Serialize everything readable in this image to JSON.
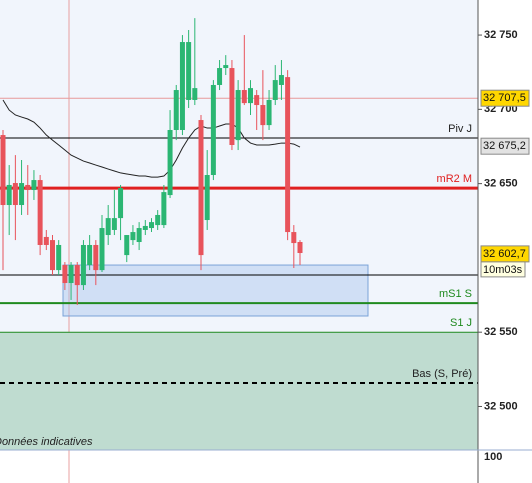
{
  "chart_data": {
    "type": "candlestick",
    "ylim": [
      32470.7,
      32773.6
    ],
    "yticks": [
      {
        "value": 32500,
        "label": "32 500"
      },
      {
        "value": 32550,
        "label": "32 550"
      },
      {
        "value": 32650,
        "label": "32 650"
      },
      {
        "value": 32700,
        "label": "32 700"
      },
      {
        "value": 32750,
        "label": "32 750"
      }
    ],
    "lower_panel_ticks": [
      100
    ],
    "up_color": "#2bb673",
    "down_color": "#e8535b",
    "categories": [
      null,
      null,
      null,
      null,
      null,
      null,
      null,
      null,
      null,
      null,
      null,
      null,
      null,
      null,
      null,
      null,
      null,
      null,
      null,
      null,
      null,
      null,
      null,
      null,
      null,
      null,
      null,
      null,
      null,
      null,
      null,
      null,
      null,
      null,
      null,
      null,
      null,
      null,
      null,
      null,
      null,
      null,
      null,
      null,
      null,
      null,
      null,
      null,
      null
    ],
    "open": [
      32682.7,
      32635.6,
      32650.4,
      32635.6,
      32649.1,
      32645.7,
      32652.4,
      32614.1,
      32612,
      32591.8,
      32595.2,
      32583.1,
      32595.2,
      32581.7,
      32595.2,
      32608.7,
      32591.8,
      32615.4,
      32618.8,
      32626.8,
      32601.9,
      32612,
      32610.7,
      32618.8,
      32620.1,
      32622.1,
      32622.1,
      32642.3,
      32686.1,
      32686.1,
      32706.3,
      32706.3,
      32692.8,
      32625.5,
      32655.8,
      32716.4,
      32727.8,
      32727.8,
      32679.3,
      32713,
      32704.2,
      32709.6,
      32702.9,
      32689.4,
      32706.3,
      32716.4,
      32721.7,
      32617.4,
      32610.7
    ],
    "high": [
      32686.1,
      32662.5,
      32669.2,
      32665.9,
      32662.5,
      32659.1,
      32655.8,
      32618.8,
      32615.4,
      32612,
      32597.2,
      32597.2,
      32597.2,
      32612,
      32615.4,
      32612,
      32628.9,
      32635.6,
      32645.7,
      32649.1,
      32615.4,
      32622.1,
      32624.1,
      32625.5,
      32626.8,
      32632.2,
      32649.1,
      32699.5,
      32716.4,
      32750,
      32753.4,
      32761.4,
      32696.2,
      32672.6,
      32719.7,
      32733.2,
      32736.5,
      32733.2,
      32719.7,
      32750,
      32719.7,
      32713,
      32726.4,
      32713,
      32729.8,
      32733.2,
      32726.4,
      32622.1,
      32612
    ],
    "low": [
      32591.8,
      32615.4,
      32612,
      32628.9,
      32628.9,
      32639,
      32601.9,
      32605.3,
      32588.5,
      32588.5,
      32578.4,
      32571.7,
      32568.3,
      32578.4,
      32591.8,
      32581.7,
      32590.5,
      32608.7,
      32615.4,
      32612,
      32597.2,
      32608.7,
      32605.3,
      32615.4,
      32617.4,
      32618.8,
      32620.1,
      32640.3,
      32679.3,
      32682.7,
      32700.9,
      32702.9,
      32591.8,
      32618.8,
      32652.4,
      32713,
      32723.1,
      32672.6,
      32672.6,
      32702.9,
      32696.2,
      32686.1,
      32679.3,
      32686.1,
      32702.9,
      32706.3,
      32612,
      32593.2,
      32595.2
    ],
    "close": [
      32635.6,
      32649.1,
      32635.6,
      32650.4,
      32645.7,
      32652.4,
      32608.7,
      32608.7,
      32591.8,
      32608.7,
      32583.1,
      32595.2,
      32581.7,
      32608.7,
      32608.7,
      32591.8,
      32620.1,
      32626.8,
      32626.8,
      32647,
      32615.4,
      32617.4,
      32620.1,
      32621.5,
      32624.1,
      32628.9,
      32644.3,
      32686.1,
      32713,
      32745.3,
      32745.3,
      32714.3,
      32601.9,
      32655.8,
      32716.4,
      32727.8,
      32729.8,
      32676,
      32713,
      32704.2,
      32714.3,
      32702.9,
      32689.4,
      32706.3,
      32719.7,
      32723.1,
      32617.4,
      32610,
      32603.3
    ],
    "moving_average": {
      "color": "#222222",
      "values": [
        32706.3,
        32699.5,
        32696.2,
        32694.8,
        32693.5,
        32691.4,
        32687.4,
        32682.7,
        32679.3,
        32676,
        32672.6,
        32669.2,
        32667.2,
        32665.2,
        32663.9,
        32662.5,
        32661.2,
        32659.8,
        32658.5,
        32657.2,
        32656.5,
        32655.8,
        32655.1,
        32655.1,
        32654.4,
        32654.4,
        32655.1,
        32659.1,
        32665.9,
        32674,
        32680.7,
        32686.1,
        32688.8,
        32687.4,
        32687.4,
        32688.8,
        32690.1,
        32690.1,
        32687.4,
        32680.7,
        32677.3,
        32676,
        32676,
        32676,
        32676.6,
        32677.3,
        32677.3,
        32676.6,
        32674.6
      ]
    },
    "levels": [
      {
        "name": "Piv J",
        "value": 32680.7,
        "color": "#000000",
        "width": 1,
        "dashed": false
      },
      {
        "name": "mR2 M",
        "value": 32647,
        "color": "#e02020",
        "width": 3,
        "dashed": false
      },
      {
        "value": 32588.5,
        "color": "#000000",
        "width": 1,
        "dashed": false
      },
      {
        "name": "mS1 S",
        "value": 32569.6,
        "color": "#1f8a1f",
        "width": 2,
        "dashed": false
      },
      {
        "name": "S1 J",
        "value": 32550,
        "color": "#1f8a1f",
        "width": 1,
        "dashed": false
      },
      {
        "name": "Bas (S, Pré)",
        "value": 32515.8,
        "color": "#000000",
        "width": 2,
        "dashed": true
      },
      {
        "value": 32707.5,
        "color": "#e89a9a",
        "width": 1,
        "dashed": false
      }
    ],
    "zone": {
      "top": 32595.2,
      "bottom": 32560.9,
      "color": "#a9c6ee"
    },
    "shaded_below": {
      "value": 32550,
      "color": "#bfdcd0"
    },
    "price_labels": [
      {
        "value": 32707.5,
        "label": "32 707,5",
        "color": "#ffd700"
      },
      {
        "value": 32675.2,
        "label": "32 675,2",
        "color": "#e2e2e2"
      },
      {
        "value": 32602.7,
        "label": "32 602,7",
        "color": "#ffd700",
        "timer": "10m03s"
      }
    ],
    "footnote": "Données indicatives"
  }
}
